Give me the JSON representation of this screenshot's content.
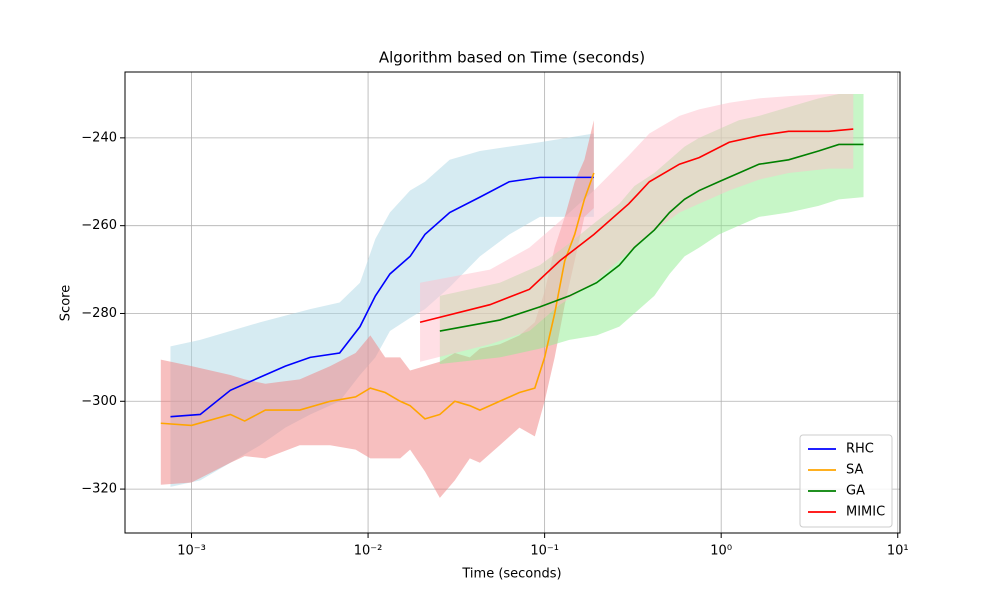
{
  "chart_data": {
    "type": "line",
    "title": "Algorithm based on Time (seconds)",
    "x_label": "Time (seconds)",
    "y_label": "Score",
    "xscale": "log",
    "grid": true,
    "legend": "lower right",
    "xlim": [
      0.00042,
      10.3
    ],
    "ylim": [
      -330,
      -225
    ],
    "xticks": [
      {
        "value": 0.001,
        "label": "10⁻³"
      },
      {
        "value": 0.01,
        "label": "10⁻²"
      },
      {
        "value": 0.1,
        "label": "10⁻¹"
      },
      {
        "value": 1,
        "label": "10⁰"
      },
      {
        "value": 10,
        "label": "10¹"
      }
    ],
    "yticks": [
      {
        "value": -240,
        "label": "−240"
      },
      {
        "value": -260,
        "label": "−260"
      },
      {
        "value": -280,
        "label": "−280"
      },
      {
        "value": -300,
        "label": "−300"
      },
      {
        "value": -320,
        "label": "−320"
      }
    ],
    "series": [
      {
        "name": "RHC",
        "color": "#0000ff",
        "band_color": "#add8e6",
        "x": [
          0.00076,
          0.00112,
          0.00166,
          0.00245,
          0.0034,
          0.0047,
          0.0069,
          0.009,
          0.011,
          0.0133,
          0.0173,
          0.021,
          0.029,
          0.043,
          0.063,
          0.094,
          0.19
        ],
        "values": [
          -303.5,
          -303,
          -297.5,
          -294.5,
          -292,
          -290,
          -289,
          -283,
          -276,
          -271,
          -267,
          -262,
          -257,
          -253.5,
          -250,
          -249,
          -249
        ],
        "upper": [
          -287.5,
          -286,
          -284,
          -282,
          -280.5,
          -279,
          -277.5,
          -273,
          -263,
          -257,
          -252,
          -250,
          -245,
          -243,
          -242,
          -241,
          -239
        ],
        "lower": [
          -319.5,
          -318,
          -314,
          -310,
          -306,
          -303,
          -300,
          -294,
          -290,
          -284,
          -281,
          -279,
          -274,
          -267,
          -262,
          -258,
          -258
        ]
      },
      {
        "name": "SA",
        "color": "#ffa500",
        "band_color": "#f08080",
        "x": [
          0.00067,
          0.001,
          0.00166,
          0.002,
          0.00262,
          0.0041,
          0.0061,
          0.0085,
          0.0103,
          0.0125,
          0.0152,
          0.0173,
          0.021,
          0.0255,
          0.031,
          0.0377,
          0.043,
          0.0557,
          0.072,
          0.088,
          0.1,
          0.114,
          0.13,
          0.148,
          0.168,
          0.19
        ],
        "values": [
          -305,
          -305.5,
          -303,
          -304.5,
          -302,
          -302,
          -300,
          -299,
          -297,
          -298,
          -300,
          -301,
          -304,
          -303,
          -300,
          -301,
          -302,
          -300,
          -298,
          -297,
          -290,
          -280,
          -268,
          -262,
          -254,
          -248
        ],
        "upper": [
          -290.5,
          -292,
          -294,
          -295,
          -296,
          -295,
          -292,
          -289,
          -285,
          -290,
          -290,
          -293,
          -292,
          -291,
          -289,
          -290,
          -288,
          -287,
          -285,
          -282,
          -275,
          -265,
          -258,
          -250,
          -245,
          -236
        ],
        "lower": [
          -319,
          -318.5,
          -314,
          -312.5,
          -313,
          -310,
          -310,
          -311,
          -313,
          -313,
          -313,
          -311,
          -316,
          -322,
          -318,
          -313,
          -314,
          -310,
          -306,
          -308,
          -300,
          -290,
          -278,
          -268,
          -258,
          -256
        ]
      },
      {
        "name": "GA",
        "color": "#008000",
        "band_color": "#90ee90",
        "x": [
          0.0255,
          0.0557,
          0.094,
          0.138,
          0.197,
          0.265,
          0.322,
          0.418,
          0.51,
          0.62,
          0.75,
          0.97,
          1.26,
          1.64,
          2.41,
          3.56,
          4.64,
          6.4
        ],
        "values": [
          -284,
          -281.5,
          -278.5,
          -276,
          -273,
          -269,
          -265,
          -261,
          -257,
          -254,
          -252,
          -250,
          -248,
          -246,
          -245,
          -243,
          -241.5,
          -241.5
        ],
        "upper": [
          -276,
          -273,
          -269,
          -264,
          -259,
          -255,
          -251,
          -248,
          -245,
          -242,
          -240,
          -238,
          -236,
          -235,
          -233,
          -231,
          -230,
          -230
        ],
        "lower": [
          -291.5,
          -290,
          -288,
          -286,
          -285,
          -283,
          -280,
          -276,
          -271,
          -267,
          -265,
          -262,
          -260,
          -258,
          -257,
          -255.5,
          -254,
          -253.5
        ]
      },
      {
        "name": "MIMIC",
        "color": "#ff0000",
        "band_color": "#ffc0cb",
        "x": [
          0.0197,
          0.049,
          0.082,
          0.122,
          0.19,
          0.3,
          0.392,
          0.58,
          0.75,
          1.11,
          1.64,
          2.41,
          4.07,
          5.6
        ],
        "values": [
          -282,
          -278,
          -274.5,
          -268,
          -262,
          -255,
          -250,
          -246,
          -244.5,
          -241,
          -239.5,
          -238.5,
          -238.5,
          -238
        ],
        "upper": [
          -273,
          -270,
          -265,
          -259,
          -252,
          -244,
          -239,
          -235,
          -233.5,
          -232,
          -231,
          -230.5,
          -230,
          -230
        ],
        "lower": [
          -291,
          -287,
          -284,
          -278,
          -273,
          -266,
          -262,
          -257,
          -255,
          -252,
          -249.5,
          -248,
          -247,
          -247
        ]
      }
    ]
  }
}
